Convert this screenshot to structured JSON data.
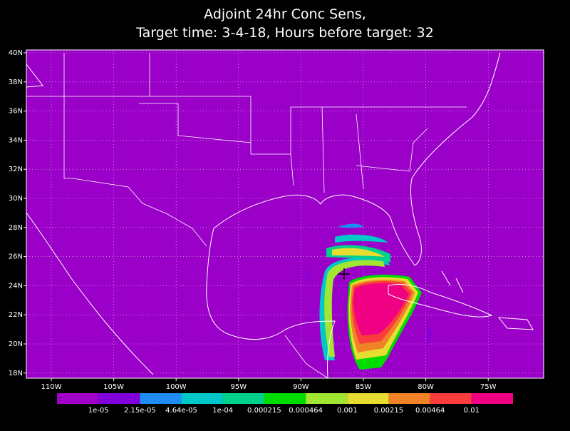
{
  "title": {
    "line1": "Adjoint 24hr Conc Sens,",
    "line2": "Target time: 3-4-18, Hours before target: 32"
  },
  "lat_labels": [
    "40N",
    "38N",
    "36N",
    "34N",
    "32N",
    "30N",
    "28N",
    "26N",
    "24N",
    "22N",
    "20N",
    "18N"
  ],
  "lon_labels": [
    "110W",
    "105W",
    "100W",
    "95W",
    "90W",
    "85W",
    "80W",
    "75W"
  ],
  "colorbar": {
    "colors": [
      "#a000c8",
      "#8200dc",
      "#1e8cf0",
      "#00c8c8",
      "#00d28c",
      "#00dc00",
      "#a0e632",
      "#e6dc32",
      "#f08228",
      "#fa3c3c",
      "#f00082"
    ],
    "labels": [
      "1e-05",
      "2.15e-05",
      "4.64e-05",
      "1e-04",
      "0.000215",
      "0.000464",
      "0.001",
      "0.00215",
      "0.00464",
      "0.01"
    ]
  }
}
